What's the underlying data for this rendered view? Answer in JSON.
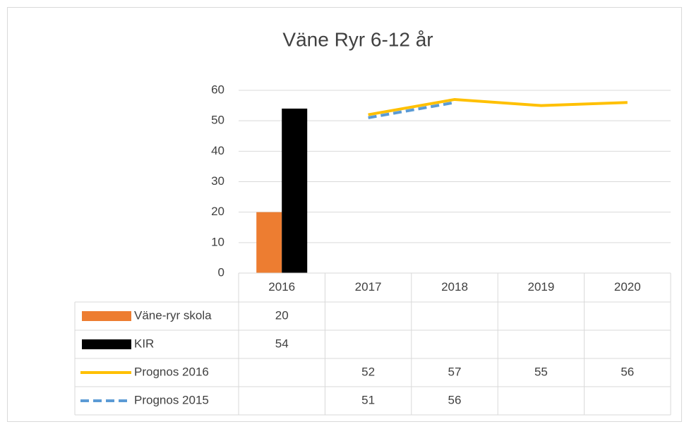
{
  "chart_data": {
    "type": "combo",
    "title": "Väne Ryr 6-12 år",
    "categories": [
      "2016",
      "2017",
      "2018",
      "2019",
      "2020"
    ],
    "series": [
      {
        "name": "Väne-ryr skola",
        "type": "bar",
        "color": "#ed7d31",
        "values": [
          20,
          null,
          null,
          null,
          null
        ]
      },
      {
        "name": "KIR",
        "type": "bar",
        "color": "#000000",
        "values": [
          54,
          null,
          null,
          null,
          null
        ]
      },
      {
        "name": "Prognos 2016",
        "type": "line",
        "color": "#ffc000",
        "values": [
          null,
          52,
          57,
          55,
          56
        ]
      },
      {
        "name": "Prognos 2015",
        "type": "line",
        "dashed": true,
        "color": "#5b9bd5",
        "values": [
          null,
          51,
          56,
          null,
          null
        ]
      }
    ],
    "ylim": [
      0,
      60
    ],
    "yticks": [
      0,
      10,
      20,
      30,
      40,
      50,
      60
    ],
    "grid": true,
    "data_table": true
  }
}
